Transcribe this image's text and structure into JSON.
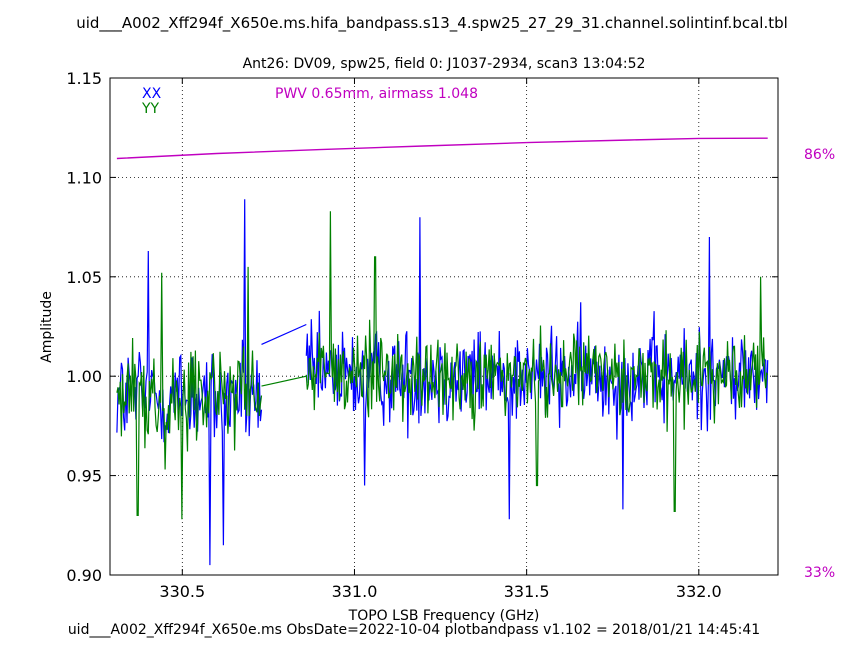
{
  "figure": {
    "suptitle": "uid___A002_Xff294f_X650e.ms.hifa_bandpass.s13_4.spw25_27_29_31.channel.solintinf.bcal.tbl",
    "plot_title": "Ant26: DV09,  spw25,  field 0: J1037-2934,  scan3  13:04:52",
    "footer": "uid___A002_Xff294f_X650e.ms  ObsDate=2022-10-04   plotbandpass v1.102 = 2018/01/21 14:45:41"
  },
  "chart_data": {
    "type": "line",
    "xlabel": "TOPO LSB Frequency (GHz)",
    "ylabel": "Amplitude",
    "xlim": [
      330.29,
      332.23
    ],
    "ylim": [
      0.9,
      1.15
    ],
    "xticks": [
      "330.5",
      "331.0",
      "331.5",
      "332.0"
    ],
    "xtick_values": [
      330.5,
      331.0,
      331.5,
      332.0
    ],
    "yticks": [
      "0.90",
      "0.95",
      "1.00",
      "1.05",
      "1.10",
      "1.15"
    ],
    "ytick_values": [
      0.9,
      0.95,
      1.0,
      1.05,
      1.1,
      1.15
    ],
    "grid": true,
    "legend_location": "top-left",
    "annotation": "PWV 0.65mm, airmass 1.048",
    "annotation_color": "#c000c0",
    "right_axis": {
      "labels": [
        "86%",
        "33%"
      ],
      "color": "#c000c0"
    },
    "colors": {
      "XX": "#0000ff",
      "YY": "#008000",
      "atm": "#c000c0"
    },
    "series": [
      {
        "name": "XX",
        "segments": [
          {
            "x_start": 330.31,
            "x_end": 330.73,
            "n": 130,
            "mean": 0.99,
            "spread": 0.027,
            "spikes": [
              [
                330.68,
                1.089
              ],
              [
                330.58,
                0.905
              ],
              [
                330.4,
                1.063
              ],
              [
                330.62,
                0.915
              ]
            ]
          },
          {
            "x_start": 330.86,
            "x_end": 332.2,
            "n": 460,
            "mean": 1.0,
            "spread": 0.024,
            "spikes": [
              [
                331.19,
                1.08
              ],
              [
                332.03,
                1.07
              ],
              [
                331.45,
                0.928
              ],
              [
                331.78,
                0.933
              ],
              [
                331.03,
                0.945
              ]
            ]
          }
        ],
        "bridge": [
          [
            330.73,
            1.016
          ],
          [
            330.86,
            1.026
          ]
        ]
      },
      {
        "name": "YY",
        "segments": [
          {
            "x_start": 330.31,
            "x_end": 330.73,
            "n": 130,
            "mean": 0.99,
            "spread": 0.025,
            "spikes": [
              [
                330.37,
                0.93
              ],
              [
                330.44,
                1.052
              ],
              [
                330.69,
                1.055
              ],
              [
                330.5,
                0.928
              ]
            ]
          },
          {
            "x_start": 330.86,
            "x_end": 332.2,
            "n": 460,
            "mean": 1.0,
            "spread": 0.022,
            "spikes": [
              [
                330.93,
                1.083
              ],
              [
                331.06,
                1.06
              ],
              [
                331.53,
                0.945
              ],
              [
                331.93,
                0.932
              ],
              [
                332.18,
                1.05
              ]
            ]
          }
        ],
        "bridge": [
          [
            330.73,
            0.995
          ],
          [
            330.86,
            1.0
          ]
        ]
      }
    ],
    "atmosphere": {
      "name": "Transmission",
      "x": [
        330.31,
        330.6,
        330.9,
        331.2,
        331.5,
        331.8,
        332.0,
        332.2
      ],
      "y": [
        1.1095,
        1.112,
        1.114,
        1.1158,
        1.1175,
        1.1188,
        1.1196,
        1.1197
      ]
    }
  }
}
